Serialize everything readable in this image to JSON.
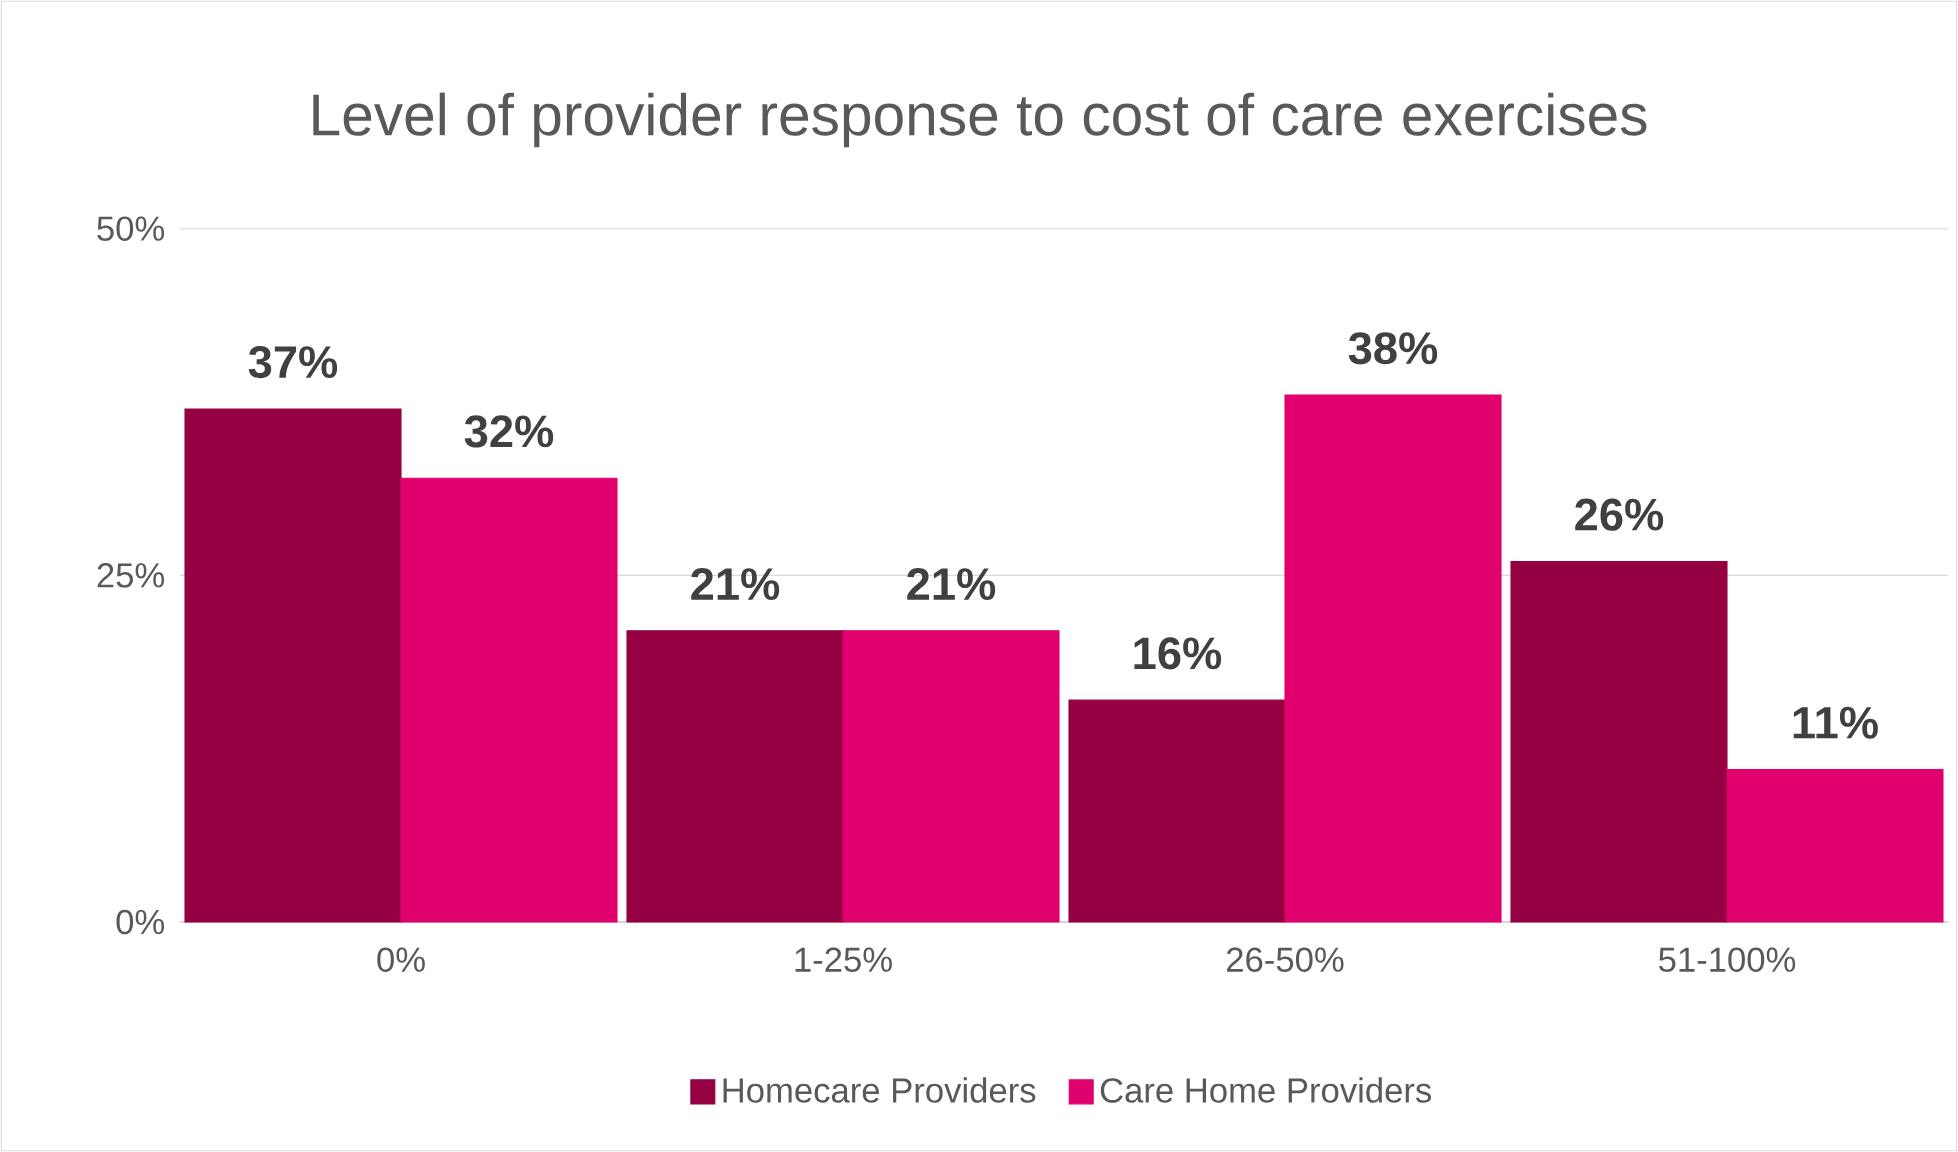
{
  "chart_data": {
    "type": "bar",
    "title": "Level of provider response to cost of care exercises",
    "categories": [
      "0%",
      "1-25%",
      "26-50%",
      "51-100%"
    ],
    "series": [
      {
        "name": "Homecare Providers",
        "color": "#940041",
        "values": [
          37,
          21,
          16,
          26
        ],
        "value_labels": [
          "37%",
          "21%",
          "16%",
          "26%"
        ]
      },
      {
        "name": "Care Home Providers",
        "color": "#e0006e",
        "values": [
          32,
          21,
          38,
          11
        ],
        "value_labels": [
          "32%",
          "21%",
          "38%",
          "11%"
        ]
      }
    ],
    "ylim": [
      0,
      50
    ],
    "yticks": [
      {
        "value": 0,
        "label": "0%"
      },
      {
        "value": 25,
        "label": "25%"
      },
      {
        "value": 50,
        "label": "50%"
      }
    ],
    "grid": "y",
    "legend": "bottom"
  }
}
